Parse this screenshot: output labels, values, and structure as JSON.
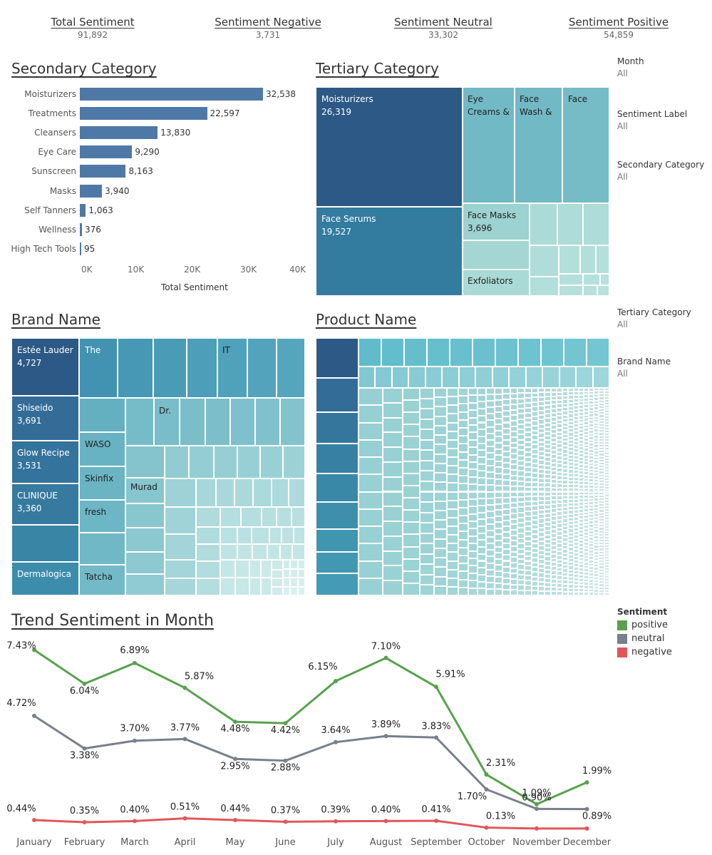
{
  "kpis": [
    {
      "label": "Total Sentiment",
      "value": "91,892"
    },
    {
      "label": "Sentiment Negative",
      "value": "3,731"
    },
    {
      "label": "Sentiment Neutral",
      "value": "33,302"
    },
    {
      "label": "Sentiment Positive",
      "value": "54,859"
    }
  ],
  "secondary": {
    "title": "Secondary Category",
    "axis_title": "Total Sentiment",
    "ticks": [
      "0K",
      "10K",
      "20K",
      "30K",
      "40K"
    ],
    "bars": [
      {
        "label": "Moisturizers",
        "value": 32538,
        "text": "32,538"
      },
      {
        "label": "Treatments",
        "value": 22597,
        "text": "22,597"
      },
      {
        "label": "Cleansers",
        "value": 13830,
        "text": "13,830"
      },
      {
        "label": "Eye Care",
        "value": 9290,
        "text": "9,290"
      },
      {
        "label": "Sunscreen",
        "value": 8163,
        "text": "8,163"
      },
      {
        "label": "Masks",
        "value": 3940,
        "text": "3,940"
      },
      {
        "label": "Self Tanners",
        "value": 1063,
        "text": "1,063"
      },
      {
        "label": "Wellness",
        "value": 376,
        "text": "376"
      },
      {
        "label": "High Tech Tools",
        "value": 95,
        "text": "95"
      }
    ],
    "bar_color": "#4e79a7",
    "xlim": [
      0,
      40000
    ]
  },
  "tertiary": {
    "title": "Tertiary Category",
    "labels": [
      {
        "name": "Moisturizers",
        "value": "26,319"
      },
      {
        "name": "Face Serums",
        "value": "19,527"
      },
      {
        "name": "Eye Creams &",
        "value": ""
      },
      {
        "name": "Face Wash &",
        "value": ""
      },
      {
        "name": "Face",
        "value": ""
      },
      {
        "name": "Face Masks",
        "value": "3,696"
      },
      {
        "name": "Exfoliators",
        "value": ""
      }
    ]
  },
  "brand": {
    "title": "Brand Name",
    "labels": [
      {
        "name": "Estée Lauder",
        "value": "4,727"
      },
      {
        "name": "Shiseido",
        "value": "3,691"
      },
      {
        "name": "Glow Recipe",
        "value": "3,531"
      },
      {
        "name": "CLINIQUE",
        "value": "3,360"
      },
      {
        "name": "Dermalogica",
        "value": ""
      },
      {
        "name": "The",
        "value": ""
      },
      {
        "name": "IT",
        "value": ""
      },
      {
        "name": "Dr.",
        "value": ""
      },
      {
        "name": "WASO",
        "value": ""
      },
      {
        "name": "Skinfix",
        "value": ""
      },
      {
        "name": "fresh",
        "value": ""
      },
      {
        "name": "Murad",
        "value": ""
      },
      {
        "name": "Tatcha",
        "value": ""
      }
    ]
  },
  "product": {
    "title": "Product Name"
  },
  "filters": [
    {
      "label": "Month",
      "value": "All"
    },
    {
      "label": "Sentiment Label",
      "value": "All"
    },
    {
      "label": "Secondary Category",
      "value": "All"
    },
    {
      "label": "Tertiary Category",
      "value": "All"
    },
    {
      "label": "Brand Name",
      "value": "All"
    }
  ],
  "legend": {
    "title": "Sentiment",
    "items": [
      {
        "name": "positive",
        "color": "#59a14f"
      },
      {
        "name": "neutral",
        "color": "#79808c"
      },
      {
        "name": "negative",
        "color": "#e15759"
      }
    ]
  },
  "chart_data": {
    "type": "line",
    "title": "Trend Sentiment in Month",
    "x": [
      "January",
      "February",
      "March",
      "April",
      "May",
      "June",
      "July",
      "August",
      "September",
      "October",
      "November",
      "December"
    ],
    "series": [
      {
        "name": "positive",
        "color": "#59a14f",
        "values": [
          7.43,
          6.04,
          6.89,
          5.87,
          4.48,
          4.42,
          6.15,
          7.1,
          5.91,
          2.31,
          1.09,
          1.99
        ]
      },
      {
        "name": "neutral",
        "color": "#79808c",
        "values": [
          4.72,
          3.38,
          3.7,
          3.77,
          2.95,
          2.88,
          3.64,
          3.89,
          3.83,
          1.7,
          0.9,
          0.89
        ]
      },
      {
        "name": "negative",
        "color": "#e15759",
        "values": [
          0.44,
          0.35,
          0.4,
          0.51,
          0.44,
          0.37,
          0.39,
          0.4,
          0.41,
          0.13,
          0.09,
          0.09
        ]
      }
    ],
    "value_suffix": "%",
    "grid": false,
    "legend": "right"
  }
}
